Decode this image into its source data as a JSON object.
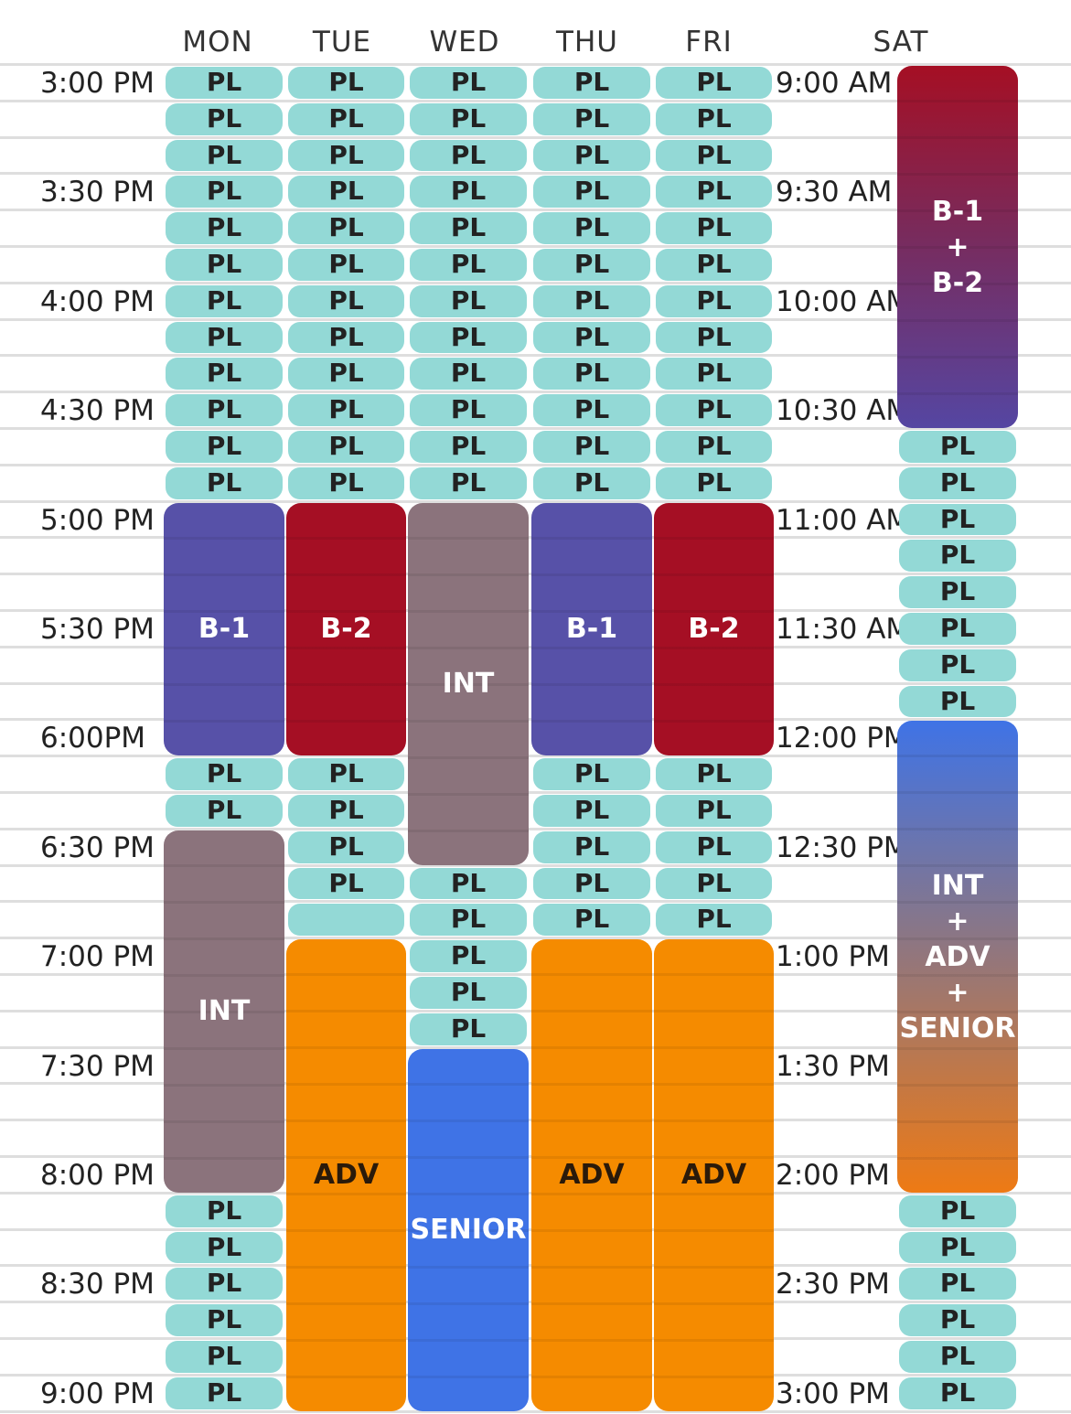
{
  "days": [
    "MON",
    "TUE",
    "WED",
    "THU",
    "FRI",
    "SAT"
  ],
  "weekday_times": [
    "3:00 PM",
    "3:30 PM",
    "4:00 PM",
    "4:30 PM",
    "5:00 PM",
    "5:30 PM",
    "6:00PM",
    "6:30 PM",
    "7:00 PM",
    "7:30 PM",
    "8:00 PM",
    "8:30 PM",
    "9:00 PM"
  ],
  "saturday_times": [
    "9:00 AM",
    "9:30 AM",
    "10:00 AM",
    "10:30 AM",
    "11:00 AM",
    "11:30 AM",
    "12:00 PM",
    "12:30 PM",
    "1:00 PM",
    "1:30 PM",
    "2:00 PM",
    "2:30 PM",
    "3:00 PM"
  ],
  "slot_label": "PL",
  "colors": {
    "pl": "#93d9d6",
    "b1": "#5751a8",
    "b2": "#a50f24",
    "int": "#8b737c",
    "adv": "#f58b00",
    "senior": "#3f73e6"
  },
  "weekday_schedule": [
    {
      "day": "MON",
      "blocks": [
        {
          "start": 0,
          "end": 12,
          "type": "pl"
        },
        {
          "start": 12,
          "end": 19,
          "type": "b1",
          "label": "B-1"
        },
        {
          "start": 19,
          "end": 21,
          "type": "pl"
        },
        {
          "start": 21,
          "end": 31,
          "type": "int",
          "label": "INT"
        },
        {
          "start": 31,
          "end": 37,
          "type": "pl"
        }
      ]
    },
    {
      "day": "TUE",
      "blocks": [
        {
          "start": 0,
          "end": 12,
          "type": "pl"
        },
        {
          "start": 12,
          "end": 19,
          "type": "b2",
          "label": "B-2"
        },
        {
          "start": 19,
          "end": 23,
          "type": "pl"
        },
        {
          "start": 23,
          "end": 24,
          "type": "empty"
        },
        {
          "start": 24,
          "end": 37,
          "type": "adv",
          "label": "ADV"
        }
      ]
    },
    {
      "day": "WED",
      "blocks": [
        {
          "start": 0,
          "end": 12,
          "type": "pl"
        },
        {
          "start": 12,
          "end": 22,
          "type": "int",
          "label": "INT"
        },
        {
          "start": 22,
          "end": 27,
          "type": "pl"
        },
        {
          "start": 27,
          "end": 37,
          "type": "senior",
          "label": "SENIOR"
        }
      ]
    },
    {
      "day": "THU",
      "blocks": [
        {
          "start": 0,
          "end": 12,
          "type": "pl"
        },
        {
          "start": 12,
          "end": 19,
          "type": "b1",
          "label": "B-1"
        },
        {
          "start": 19,
          "end": 24,
          "type": "pl"
        },
        {
          "start": 24,
          "end": 37,
          "type": "adv",
          "label": "ADV"
        }
      ]
    },
    {
      "day": "FRI",
      "blocks": [
        {
          "start": 0,
          "end": 12,
          "type": "pl"
        },
        {
          "start": 12,
          "end": 19,
          "type": "b2",
          "label": "B-2"
        },
        {
          "start": 19,
          "end": 24,
          "type": "pl"
        },
        {
          "start": 24,
          "end": 37,
          "type": "adv",
          "label": "ADV"
        }
      ]
    }
  ],
  "saturday_schedule": [
    {
      "start": 0,
      "end": 10,
      "type": "grad1",
      "label": "B-1\n+\nB-2"
    },
    {
      "start": 10,
      "end": 18,
      "type": "pl"
    },
    {
      "start": 18,
      "end": 31,
      "type": "grad2",
      "label": "INT\n+\nADV\n+\nSENIOR"
    },
    {
      "start": 31,
      "end": 37,
      "type": "pl"
    }
  ]
}
